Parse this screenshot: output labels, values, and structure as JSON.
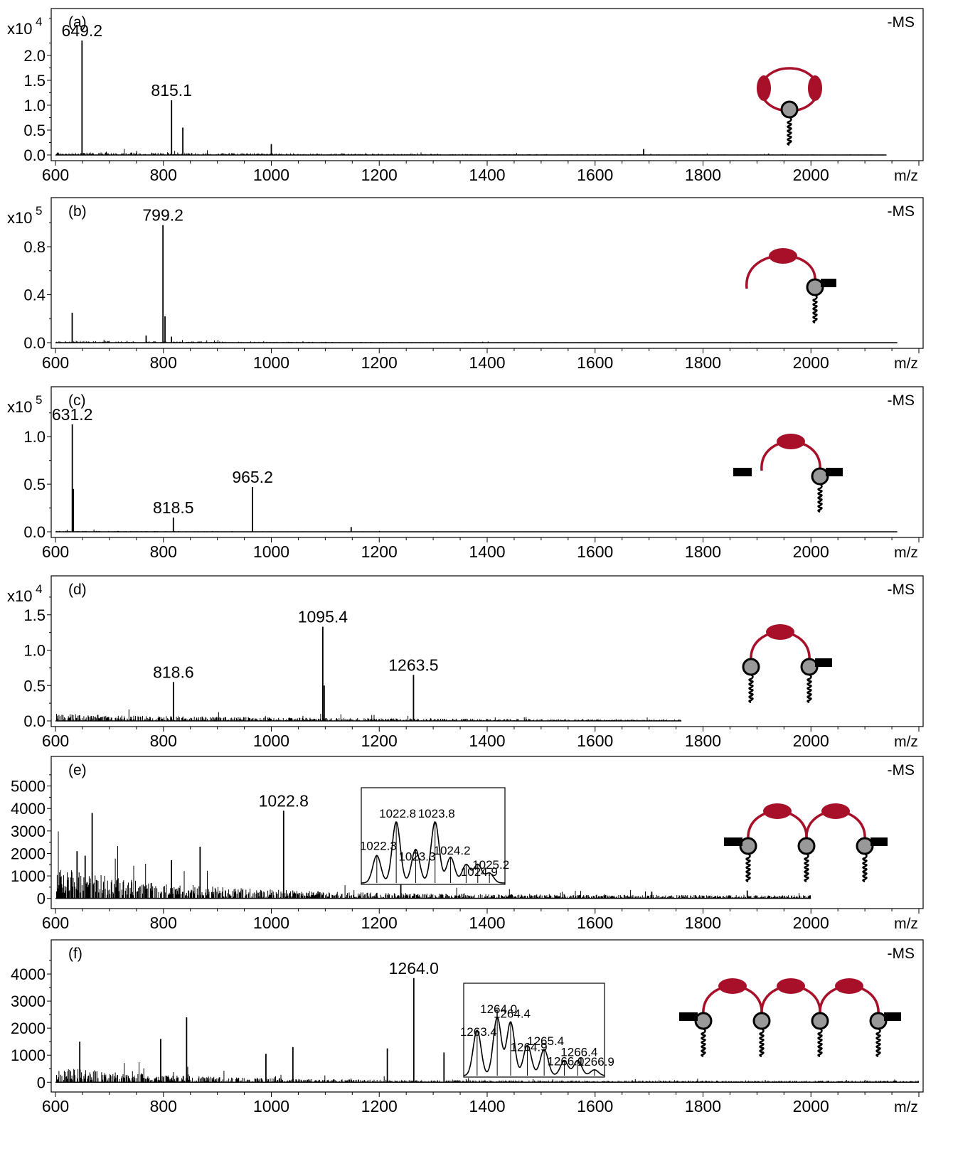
{
  "chart_data": [
    {
      "type": "line",
      "panel_label": "(a)",
      "ms_label": "-MS",
      "x_unit": "m/z",
      "xlim": [
        600,
        2200
      ],
      "x_ticks": [
        "600",
        "800",
        "1000",
        "1200",
        "1400",
        "1600",
        "1800",
        "2000"
      ],
      "y_exponent": "x10",
      "y_exponent_power": "4",
      "y_ticks": [
        "0.0",
        "0.5",
        "1.0",
        "1.5",
        "2.0"
      ],
      "y_tick_values": [
        0,
        0.5,
        1.0,
        1.5,
        2.0
      ],
      "ylim": [
        0,
        2.8
      ],
      "schematic": {
        "units": 1,
        "cyclic": true,
        "left_tag": false,
        "right_tag": false
      },
      "noise": {
        "seed": 11,
        "end": 2140,
        "base": 0.03,
        "decay": 600,
        "prob": 0.55
      },
      "peaks": [
        {
          "x": 649.2,
          "y": 2.3,
          "label": "649.2"
        },
        {
          "x": 815.1,
          "y": 1.1,
          "label": "815.1"
        },
        {
          "x": 836,
          "y": 0.55
        },
        {
          "x": 1000,
          "y": 0.22
        },
        {
          "x": 1690,
          "y": 0.12
        }
      ],
      "inset": null
    },
    {
      "type": "line",
      "panel_label": "(b)",
      "ms_label": "-MS",
      "x_unit": "m/z",
      "xlim": [
        600,
        2200
      ],
      "x_ticks": [
        "600",
        "800",
        "1000",
        "1200",
        "1400",
        "1600",
        "1800",
        "2000"
      ],
      "y_exponent": "x10",
      "y_exponent_power": "5",
      "y_ticks": [
        "0.0",
        "0.4",
        "0.8"
      ],
      "y_tick_values": [
        0,
        0.4,
        0.8
      ],
      "ylim": [
        0,
        1.15
      ],
      "schematic": {
        "units": 1,
        "cyclic": false,
        "left_tag": false,
        "right_tag": true
      },
      "noise": {
        "seed": 23,
        "end": 2160,
        "base": 0.008,
        "decay": 500,
        "prob": 0.45
      },
      "peaks": [
        {
          "x": 631,
          "y": 0.25
        },
        {
          "x": 768,
          "y": 0.06
        },
        {
          "x": 799.2,
          "y": 0.98,
          "label": "799.2"
        },
        {
          "x": 803,
          "y": 0.22
        },
        {
          "x": 815,
          "y": 0.05
        }
      ],
      "inset": null
    },
    {
      "type": "line",
      "panel_label": "(c)",
      "ms_label": "-MS",
      "x_unit": "m/z",
      "xlim": [
        600,
        2200
      ],
      "x_ticks": [
        "600",
        "800",
        "1000",
        "1200",
        "1400",
        "1600",
        "1800",
        "2000"
      ],
      "y_exponent": "x10",
      "y_exponent_power": "5",
      "y_ticks": [
        "0.0",
        "0.5",
        "1.0"
      ],
      "y_tick_values": [
        0,
        0.5,
        1.0
      ],
      "ylim": [
        0,
        1.45
      ],
      "schematic": {
        "units": 1,
        "cyclic": false,
        "left_tag": true,
        "right_tag": true
      },
      "noise": {
        "seed": 37,
        "end": 2160,
        "base": 0.006,
        "decay": 400,
        "prob": 0.35
      },
      "peaks": [
        {
          "x": 631.2,
          "y": 1.13,
          "label": "631.2"
        },
        {
          "x": 633,
          "y": 0.45
        },
        {
          "x": 818.5,
          "y": 0.15,
          "label": "818.5"
        },
        {
          "x": 965.2,
          "y": 0.47,
          "label": "965.2"
        },
        {
          "x": 1148,
          "y": 0.05
        }
      ],
      "inset": null
    },
    {
      "type": "line",
      "panel_label": "(d)",
      "ms_label": "-MS",
      "x_unit": "m/z",
      "xlim": [
        600,
        2200
      ],
      "x_ticks": [
        "600",
        "800",
        "1000",
        "1200",
        "1400",
        "1600",
        "1800",
        "2000"
      ],
      "y_exponent": "x10",
      "y_exponent_power": "4",
      "y_ticks": [
        "0.0",
        "0.5",
        "1.0",
        "1.5"
      ],
      "y_tick_values": [
        0,
        0.5,
        1.0,
        1.5
      ],
      "ylim": [
        0,
        1.95
      ],
      "schematic": {
        "units": 1,
        "cyclic": false,
        "left_tag": false,
        "right_tag": true,
        "left_bead": true
      },
      "noise": {
        "seed": 41,
        "end": 1760,
        "base": 0.05,
        "decay": 500,
        "prob": 0.6
      },
      "peaks": [
        {
          "x": 818.6,
          "y": 0.55,
          "label": "818.6"
        },
        {
          "x": 1095.4,
          "y": 1.33,
          "label": "1095.4"
        },
        {
          "x": 1098,
          "y": 0.5
        },
        {
          "x": 1263.5,
          "y": 0.65,
          "label": "1263.5"
        }
      ],
      "inset": null
    },
    {
      "type": "line",
      "panel_label": "(e)",
      "ms_label": "-MS",
      "x_unit": "m/z",
      "xlim": [
        600,
        2200
      ],
      "x_ticks": [
        "600",
        "800",
        "1000",
        "1200",
        "1400",
        "1600",
        "1800",
        "2000"
      ],
      "y_exponent": "",
      "y_exponent_power": "",
      "y_ticks": [
        "0",
        "1000",
        "2000",
        "3000",
        "4000",
        "5000"
      ],
      "y_tick_values": [
        0,
        1000,
        2000,
        3000,
        4000,
        5000
      ],
      "ylim": [
        -200,
        6000
      ],
      "schematic": {
        "units": 2,
        "cyclic": false,
        "left_tag": true,
        "right_tag": true
      },
      "noise": {
        "seed": 53,
        "end": 2000,
        "base": 700,
        "decay": 250,
        "prob": 0.7
      },
      "peaks": [
        {
          "x": 668,
          "y": 3800
        },
        {
          "x": 640,
          "y": 2100
        },
        {
          "x": 655,
          "y": 1900
        },
        {
          "x": 815,
          "y": 1700
        },
        {
          "x": 868,
          "y": 2300
        },
        {
          "x": 1022.8,
          "y": 3900,
          "label": "1022.8"
        },
        {
          "x": 1240,
          "y": 1000
        },
        {
          "x": 1705,
          "y": 300
        },
        {
          "x": 1882,
          "y": 350
        }
      ],
      "inset": {
        "x_range": [
          1021.9,
          1025.6
        ],
        "peaks": [
          {
            "x": 1022.3,
            "y": 0.45,
            "label": "1022.3"
          },
          {
            "x": 1022.8,
            "y": 1.0,
            "label": "1022.8"
          },
          {
            "x": 1023.3,
            "y": 0.55,
            "label": "1023.3"
          },
          {
            "x": 1023.8,
            "y": 1.0,
            "label": "1023.8"
          },
          {
            "x": 1024.2,
            "y": 0.42,
            "label": "1024.2"
          },
          {
            "x": 1024.6,
            "y": 0.3
          },
          {
            "x": 1024.9,
            "y": 0.3,
            "label": "1024.9"
          },
          {
            "x": 1025.2,
            "y": 0.16,
            "label": "1025.2"
          }
        ]
      }
    },
    {
      "type": "line",
      "panel_label": "(f)",
      "ms_label": "-MS",
      "x_unit": "m/z",
      "xlim": [
        600,
        2200
      ],
      "x_ticks": [
        "600",
        "800",
        "1000",
        "1200",
        "1400",
        "1600",
        "1800",
        "2000"
      ],
      "y_exponent": "",
      "y_exponent_power": "",
      "y_ticks": [
        "0",
        "1000",
        "2000",
        "3000",
        "4000"
      ],
      "y_tick_values": [
        0,
        1000,
        2000,
        3000,
        4000
      ],
      "ylim": [
        -150,
        5000
      ],
      "schematic": {
        "units": 3,
        "cyclic": false,
        "left_tag": true,
        "right_tag": true
      },
      "noise": {
        "seed": 67,
        "end": 2200,
        "base": 300,
        "decay": 220,
        "prob": 0.65
      },
      "peaks": [
        {
          "x": 645,
          "y": 1500
        },
        {
          "x": 795,
          "y": 1600
        },
        {
          "x": 843,
          "y": 2400
        },
        {
          "x": 990,
          "y": 1050
        },
        {
          "x": 1040,
          "y": 1300
        },
        {
          "x": 1215,
          "y": 1250
        },
        {
          "x": 1264.0,
          "y": 3850,
          "label": "1264.0"
        },
        {
          "x": 1320,
          "y": 1100
        }
      ],
      "inset": {
        "x_range": [
          1263.0,
          1267.2
        ],
        "peaks": [
          {
            "x": 1263.4,
            "y": 0.78,
            "label": "1263.4"
          },
          {
            "x": 1264.0,
            "y": 1.0,
            "label": "1264.0"
          },
          {
            "x": 1264.4,
            "y": 0.92,
            "label": "1264.4"
          },
          {
            "x": 1264.9,
            "y": 0.52,
            "label": "1264.9"
          },
          {
            "x": 1265.4,
            "y": 0.45,
            "label": "1265.4"
          },
          {
            "x": 1266.0,
            "y": 0.25,
            "label": "1266.0"
          },
          {
            "x": 1266.4,
            "y": 0.26,
            "label": "1266.4"
          },
          {
            "x": 1266.9,
            "y": 0.1,
            "label": "1266.9"
          }
        ]
      }
    }
  ],
  "colors": {
    "axis": "#000000",
    "spectrum": "#000000",
    "schematic_loop": "#a8102a",
    "schematic_bead_fill": "#999999",
    "schematic_tag": "#000000"
  }
}
